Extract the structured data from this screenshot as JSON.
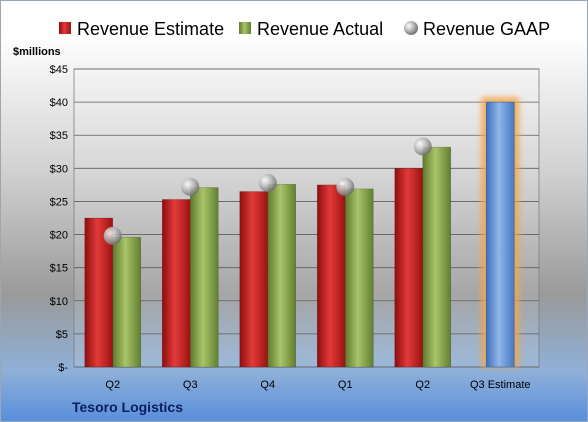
{
  "chart_data": {
    "type": "bar",
    "categories": [
      "Q2",
      "Q3",
      "Q4",
      "Q1",
      "Q2",
      "Q3 Estimate"
    ],
    "series": [
      {
        "name": "Revenue Estimate",
        "values": [
          22.5,
          25.3,
          26.5,
          27.5,
          30.0,
          null
        ],
        "color": "#cc1f1f"
      },
      {
        "name": "Revenue Actual",
        "values": [
          19.6,
          27.1,
          27.6,
          26.9,
          33.2,
          null
        ],
        "color": "#8aa84a"
      },
      {
        "name": "Revenue GAAP",
        "values": [
          19.8,
          27.2,
          27.8,
          27.2,
          33.3,
          null
        ],
        "marker": "sphere",
        "color": "#b0b0b0"
      }
    ],
    "forecast": {
      "category": "Q3 Estimate",
      "value": 40.0,
      "color": "#6e9ad8",
      "glow": "#f5a64a"
    },
    "ylabel": "$millions",
    "ylim": [
      0,
      45
    ],
    "yticks": [
      0,
      5,
      10,
      15,
      20,
      25,
      30,
      35,
      40,
      45
    ],
    "ytick_labels": [
      "$-",
      "$5",
      "$10",
      "$15",
      "$20",
      "$25",
      "$30",
      "$35",
      "$40",
      "$45"
    ],
    "grid": true,
    "legend": "top"
  },
  "footer": {
    "company": "Tesoro Logistics"
  }
}
